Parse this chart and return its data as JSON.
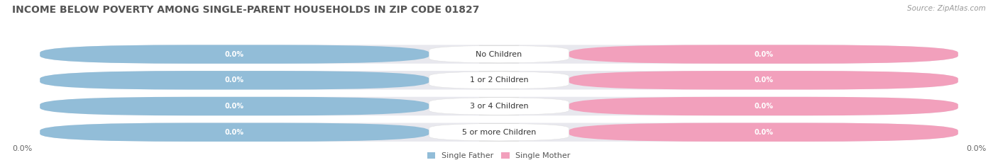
{
  "title": "INCOME BELOW POVERTY AMONG SINGLE-PARENT HOUSEHOLDS IN ZIP CODE 01827",
  "source": "Source: ZipAtlas.com",
  "categories": [
    "No Children",
    "1 or 2 Children",
    "3 or 4 Children",
    "5 or more Children"
  ],
  "father_values": [
    0.0,
    0.0,
    0.0,
    0.0
  ],
  "mother_values": [
    0.0,
    0.0,
    0.0,
    0.0
  ],
  "father_color": "#92BDD8",
  "mother_color": "#F2A0BC",
  "bar_bg_color": "#E8E8EE",
  "row_bg_color": "#F5F5F8",
  "label_bg_color": "#FFFFFF",
  "title_fontsize": 10,
  "source_fontsize": 7.5,
  "axis_label_fontsize": 8,
  "category_fontsize": 8,
  "value_fontsize": 7,
  "legend_fontsize": 8,
  "background_color": "#FFFFFF",
  "figure_width": 14.06,
  "figure_height": 2.33
}
